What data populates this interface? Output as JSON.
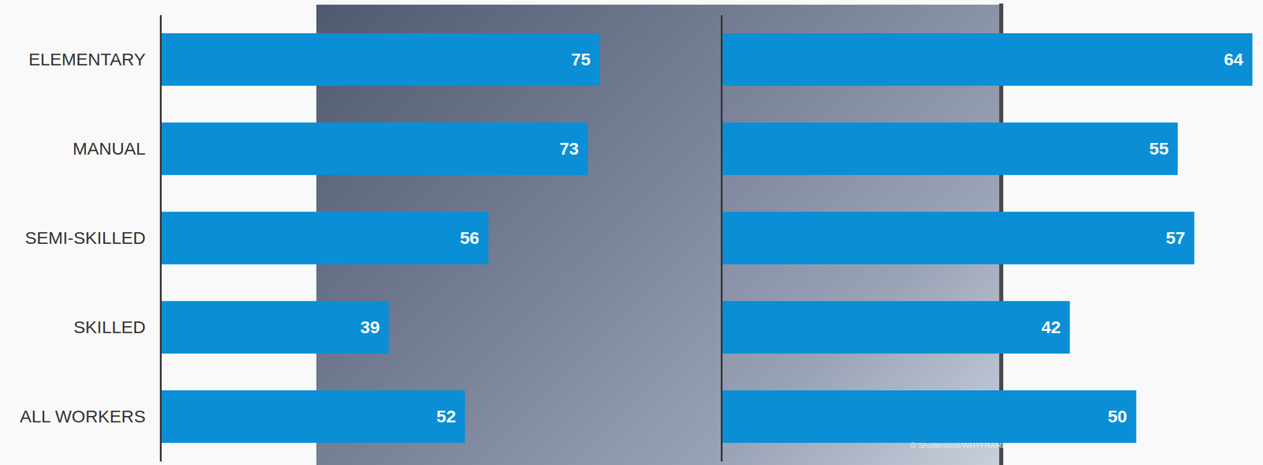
{
  "chart_data": [
    {
      "type": "bar",
      "orientation": "horizontal",
      "categories": [
        "ELEMENTARY",
        "MANUAL",
        "SEMI-SKILLED",
        "SKILLED",
        "ALL WORKERS"
      ],
      "values": [
        75,
        73,
        56,
        39,
        52
      ],
      "color": "#0a8fd6",
      "xlim": [
        0,
        95
      ],
      "xticks": [],
      "tick_labels": "y",
      "data_labels": true,
      "grid": false
    },
    {
      "type": "bar",
      "orientation": "horizontal",
      "categories": [
        "ELEMENTARY",
        "MANUAL",
        "SEMI-SKILLED",
        "SKILLED",
        "ALL WORKERS"
      ],
      "values": [
        64,
        55,
        57,
        42,
        50
      ],
      "color": "#0a8fd6",
      "xlim": [
        0,
        65
      ],
      "xticks": [],
      "tick_labels": false,
      "data_labels": true,
      "grid": false,
      "annotations": [
        "© Shutterstock/WHYFRAME"
      ]
    }
  ]
}
